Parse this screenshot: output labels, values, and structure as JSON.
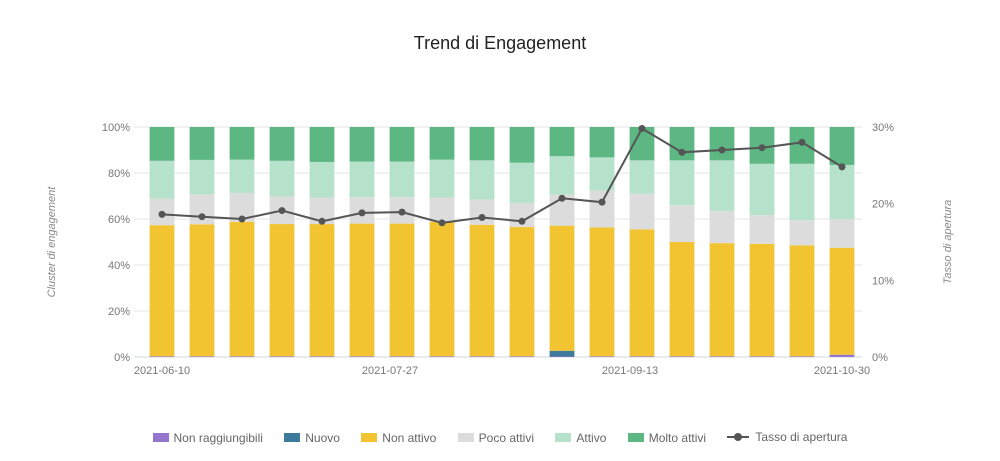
{
  "chart_data": {
    "type": "bar",
    "stacked": true,
    "title": "Trend di Engagement",
    "ylabel": "Cluster di engagement",
    "y2label": "Tasso di apertura",
    "ylim": [
      0,
      100
    ],
    "y2lim": [
      0,
      30
    ],
    "yticks": [
      "0%",
      "20%",
      "40%",
      "60%",
      "80%",
      "100%"
    ],
    "y2ticks": [
      "0%",
      "10%",
      "20%",
      "30%"
    ],
    "xtick_labels": [
      "2021-06-10",
      "2021-07-27",
      "2021-09-13",
      "2021-10-30"
    ],
    "xtick_indices": [
      0,
      6,
      12,
      18
    ],
    "grid": true,
    "legend_position": "bottom",
    "categories": [
      "1",
      "2",
      "3",
      "4",
      "5",
      "6",
      "7",
      "8",
      "9",
      "10",
      "11",
      "12",
      "13",
      "14",
      "15",
      "16",
      "17",
      "18"
    ],
    "series": [
      {
        "name": "Non raggiungibili",
        "color": "#9575cd",
        "values": [
          0.3,
          0.3,
          0.3,
          0.3,
          0.3,
          0.3,
          0.3,
          0.3,
          0.3,
          0.3,
          0.2,
          0.3,
          0.3,
          0.3,
          0.3,
          0.3,
          0.3,
          1.0
        ]
      },
      {
        "name": "Nuovo",
        "color": "#3d7a9c",
        "values": [
          0,
          0,
          0,
          0,
          0,
          0,
          0,
          0,
          0,
          0,
          2.5,
          0,
          0,
          0,
          0,
          0,
          0,
          0
        ]
      },
      {
        "name": "Non attivo",
        "color": "#f2c431",
        "values": [
          57.0,
          57.4,
          58.5,
          57.5,
          57.5,
          57.7,
          57.7,
          58.5,
          57.2,
          56.2,
          54.4,
          56.0,
          55.2,
          49.7,
          49.2,
          48.9,
          48.2,
          46.5
        ]
      },
      {
        "name": "Poco attivi",
        "color": "#dcdcdc",
        "values": [
          11.5,
          13.0,
          12.5,
          12.0,
          11.5,
          11.5,
          11.5,
          10.5,
          11.0,
          10.5,
          13.5,
          16.0,
          15.5,
          16.0,
          14.0,
          12.5,
          11.0,
          12.5
        ]
      },
      {
        "name": "Attivo",
        "color": "#b6e2cb",
        "values": [
          16.5,
          15.0,
          14.5,
          15.5,
          15.5,
          15.5,
          15.5,
          16.5,
          17.0,
          17.5,
          16.7,
          14.5,
          14.5,
          19.5,
          22.0,
          22.3,
          24.5,
          23.5
        ]
      },
      {
        "name": "Molto attivi",
        "color": "#5db782",
        "values": [
          14.7,
          14.3,
          14.2,
          14.7,
          15.2,
          15.0,
          15.0,
          14.2,
          14.5,
          15.5,
          12.7,
          13.2,
          14.5,
          14.5,
          14.5,
          16.0,
          16.0,
          16.5
        ]
      }
    ],
    "line_series": {
      "name": "Tasso di apertura",
      "color": "#555555",
      "axis": "right",
      "values": [
        18.6,
        18.3,
        18.0,
        19.1,
        17.7,
        18.8,
        18.9,
        17.5,
        18.2,
        17.7,
        20.7,
        20.2,
        29.8,
        26.7,
        27.0,
        27.3,
        28.0,
        24.8
      ]
    }
  }
}
